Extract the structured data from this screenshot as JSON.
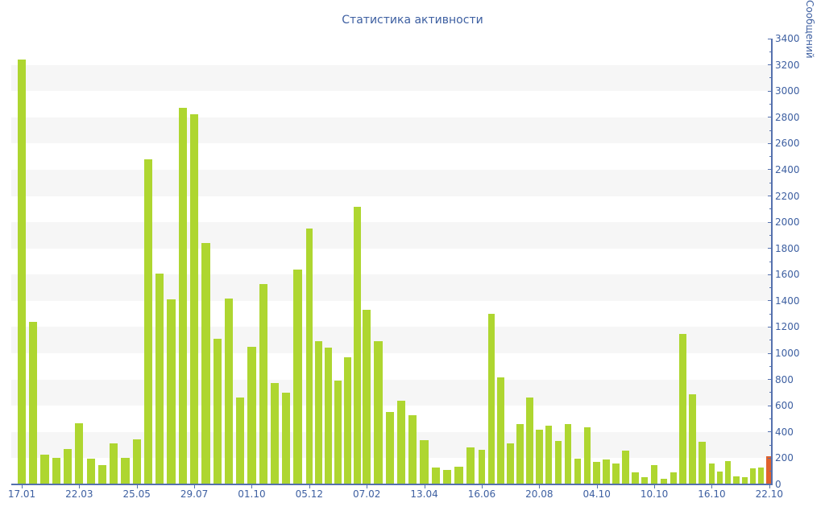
{
  "title": "Статистика активности",
  "y_axis": {
    "title": "Сообщений",
    "min": 0,
    "max": 3400,
    "label_step": 200,
    "minor_tick_step": 100,
    "tick_labels": [
      "0",
      "200",
      "400",
      "600",
      "800",
      "1000",
      "1200",
      "1400",
      "1600",
      "1800",
      "2000",
      "2200",
      "2400",
      "2600",
      "2800",
      "3000",
      "3200",
      "3400"
    ]
  },
  "chart_data": {
    "type": "bar",
    "title": "Статистика активности",
    "ylabel": "Сообщений",
    "ylim": [
      0,
      3400
    ],
    "grid": "alternating horizontal bands of 200 units",
    "legend": "none",
    "x_tick_labels": [
      "17.01",
      "22.03",
      "25.05",
      "29.07",
      "01.10",
      "05.12",
      "07.02",
      "13.04",
      "16.06",
      "20.08",
      "04.10",
      "10.10",
      "16.10",
      "22.10"
    ],
    "x_tick_bar_index": [
      0,
      5,
      10,
      15,
      20,
      25,
      31,
      36,
      41,
      47,
      53,
      59,
      65,
      72
    ],
    "values": [
      3240,
      1240,
      230,
      205,
      270,
      465,
      195,
      150,
      315,
      200,
      345,
      2480,
      1610,
      1410,
      2870,
      2825,
      1840,
      1110,
      1420,
      660,
      1050,
      1530,
      775,
      700,
      1640,
      1950,
      1090,
      1045,
      790,
      970,
      2120,
      1330,
      1090,
      550,
      640,
      525,
      340,
      130,
      110,
      135,
      280,
      265,
      1300,
      815,
      315,
      460,
      660,
      420,
      450,
      330,
      460,
      195,
      435,
      170,
      190,
      160,
      260,
      90,
      55,
      145,
      45,
      90,
      1150,
      690,
      325,
      160,
      100,
      180,
      60,
      55,
      120,
      130,
      215
    ],
    "highlighted_last_bar": true
  },
  "colors": {
    "bar": "#aed630",
    "last_bar": "#e0622d",
    "text": "#3d5fa1",
    "axis": "#5571ad",
    "band": "#f6f6f6",
    "background": "#ffffff"
  }
}
